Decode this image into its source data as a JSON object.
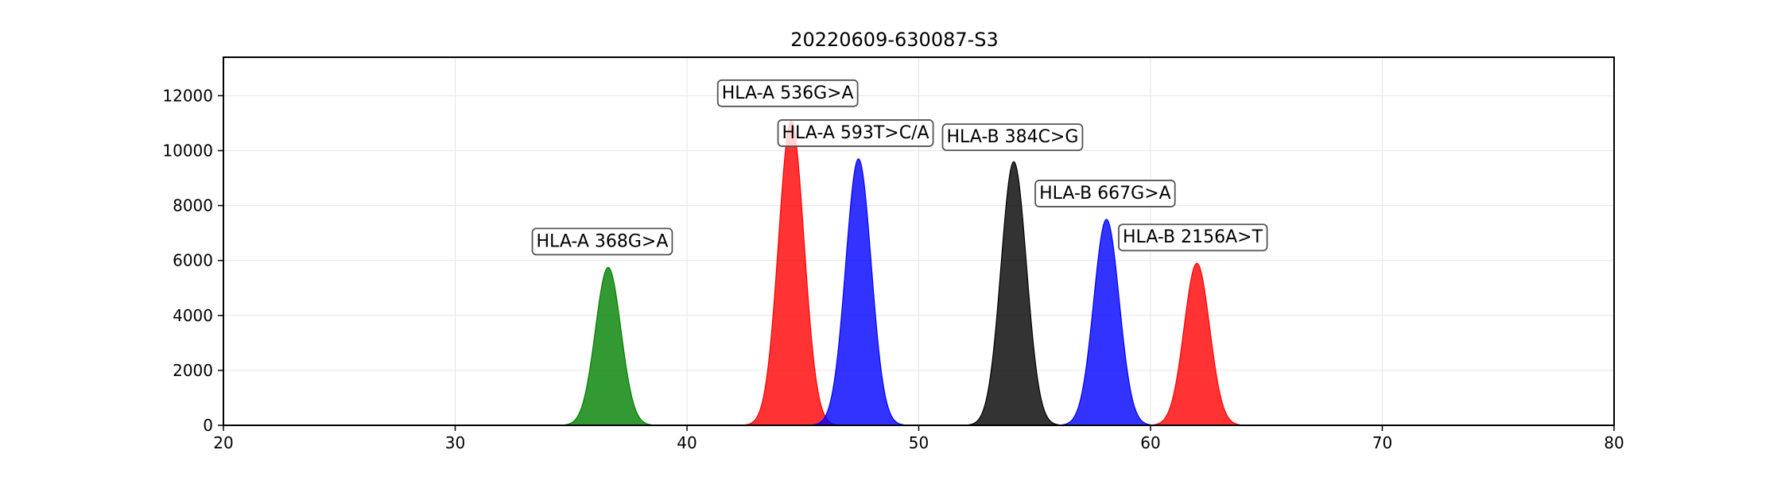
{
  "chart_data": {
    "type": "area",
    "title": "20220609-630087-S3",
    "xlabel": "",
    "ylabel": "",
    "xlim": [
      20,
      80
    ],
    "ylim": [
      0,
      13400
    ],
    "x_ticks": [
      20,
      30,
      40,
      50,
      60,
      70,
      80
    ],
    "y_ticks": [
      0,
      2000,
      4000,
      6000,
      8000,
      10000,
      12000
    ],
    "grid": true,
    "legend": "none",
    "peaks": [
      {
        "center": 36.6,
        "height": 5750,
        "width": 0.55,
        "color": "#008000"
      },
      {
        "center": 44.5,
        "height": 11100,
        "width": 0.55,
        "color": "#ff0000"
      },
      {
        "center": 47.4,
        "height": 9700,
        "width": 0.55,
        "color": "#0000ff"
      },
      {
        "center": 54.1,
        "height": 9600,
        "width": 0.55,
        "color": "#000000"
      },
      {
        "center": 58.1,
        "height": 7500,
        "width": 0.55,
        "color": "#0000ff"
      },
      {
        "center": 62.0,
        "height": 5900,
        "width": 0.55,
        "color": "#ff0000"
      }
    ],
    "annotations": [
      {
        "text": "HLA-A 368G>A",
        "x": 33.5,
        "y": 6500
      },
      {
        "text": "HLA-A 536G>A",
        "x": 41.5,
        "y": 11900
      },
      {
        "text": "HLA-A 593T>C/A",
        "x": 44.1,
        "y": 10450
      },
      {
        "text": "HLA-B 384C>G",
        "x": 51.2,
        "y": 10300
      },
      {
        "text": "HLA-B 667G>A",
        "x": 55.2,
        "y": 8250
      },
      {
        "text": "HLA-B 2156A>T",
        "x": 58.8,
        "y": 6650
      }
    ]
  }
}
